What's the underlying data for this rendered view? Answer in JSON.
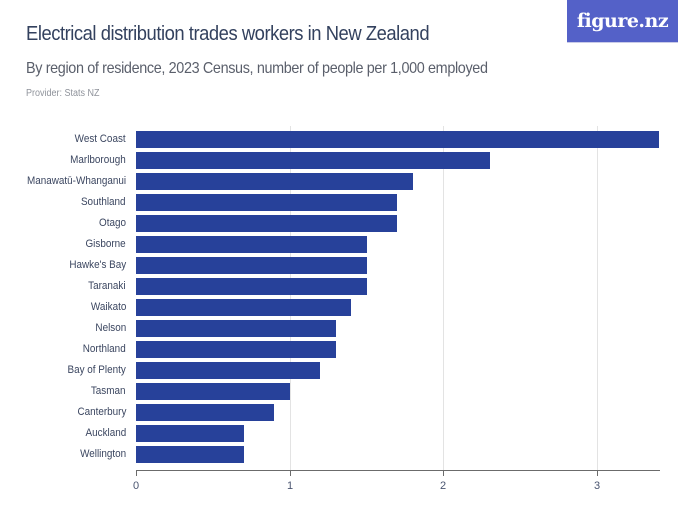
{
  "header": {
    "title": "Electrical distribution trades workers in New Zealand",
    "subtitle": "By region of residence, 2023 Census, number of people per 1,000 employed",
    "provider": "Provider: Stats NZ",
    "logo": "figure.nz",
    "logo_color": "#5461c8"
  },
  "chart_data": {
    "type": "bar",
    "orientation": "horizontal",
    "title": "Electrical distribution trades workers in New Zealand",
    "subtitle": "By region of residence, 2023 Census, number of people per 1,000 employed",
    "xlabel": "",
    "ylabel": "",
    "xlim": [
      0,
      3.4
    ],
    "xticks": [
      "0",
      "1",
      "2",
      "3"
    ],
    "grid": true,
    "legend": null,
    "bar_color": "#27419a",
    "categories": [
      "West Coast",
      "Marlborough",
      "Manawatū-Whanganui",
      "Southland",
      "Otago",
      "Gisborne",
      "Hawke's Bay",
      "Taranaki",
      "Waikato",
      "Nelson",
      "Northland",
      "Bay of Plenty",
      "Tasman",
      "Canterbury",
      "Auckland",
      "Wellington"
    ],
    "values": [
      3.4,
      2.3,
      1.8,
      1.7,
      1.7,
      1.5,
      1.5,
      1.5,
      1.4,
      1.3,
      1.3,
      1.2,
      1.0,
      0.9,
      0.7,
      0.7
    ]
  }
}
